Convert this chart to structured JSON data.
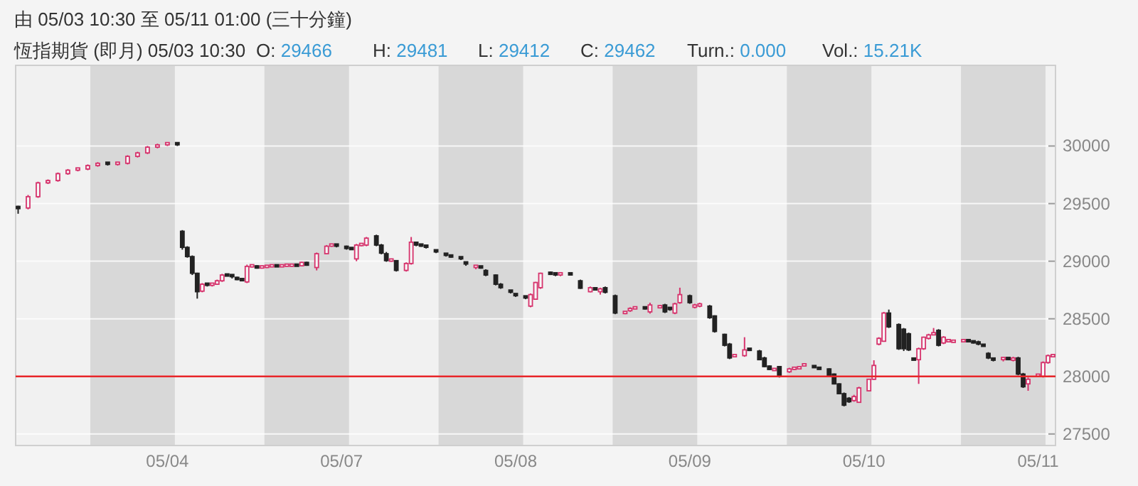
{
  "chart_data": {
    "type": "candlestick",
    "title": "由 05/03 10:30 至 05/11 01:00 (三十分鐘)",
    "annotations": [
      "恆指期貨 (即月) 05/03 10:30",
      "O: 29466",
      "H: 29481",
      "L: 29412",
      "C: 29462",
      "Turn.: 0.000",
      "Vol.: 15.21K"
    ],
    "categories": [
      null,
      null,
      null,
      null,
      null,
      null,
      null,
      null,
      null,
      null,
      null,
      null,
      null,
      null,
      null,
      null,
      null,
      null,
      null,
      null,
      null,
      null,
      null,
      null,
      null,
      null,
      null,
      null,
      null,
      null,
      "05/04",
      null,
      null,
      null,
      null,
      null,
      null,
      null,
      null,
      null,
      null,
      null,
      null,
      null,
      null,
      null,
      null,
      null,
      null,
      null,
      null,
      null,
      null,
      null,
      null,
      null,
      null,
      null,
      null,
      null,
      null,
      null,
      null,
      null,
      null,
      "05/07",
      null,
      null,
      null,
      null,
      null,
      null,
      null,
      null,
      null,
      null,
      null,
      null,
      null,
      null,
      null,
      null,
      null,
      null,
      null,
      null,
      null,
      null,
      null,
      null,
      null,
      null,
      null,
      null,
      null,
      null,
      null,
      null,
      null,
      null,
      "05/08",
      null,
      null,
      null,
      null,
      null,
      null,
      null,
      null,
      null,
      null,
      null,
      null,
      null,
      null,
      null,
      null,
      null,
      null,
      null,
      null,
      null,
      null,
      null,
      null,
      null,
      null,
      null,
      null,
      null,
      null,
      null,
      null,
      null,
      null,
      "05/09",
      null,
      null,
      null,
      null,
      null,
      null,
      null,
      null,
      null,
      null,
      null,
      null,
      null,
      null,
      null,
      null,
      null,
      null,
      null,
      null,
      null,
      null,
      null,
      null,
      null,
      null,
      null,
      null,
      null,
      null,
      null,
      null,
      null,
      null,
      "05/10",
      null,
      null,
      null,
      null,
      null,
      null,
      null,
      null,
      null,
      null,
      null,
      null,
      null,
      null,
      null,
      null,
      null,
      null,
      null,
      null,
      null,
      null,
      null,
      null,
      null,
      null,
      null,
      null,
      null,
      null,
      null,
      null,
      null,
      null,
      "05/11",
      null,
      null,
      null
    ],
    "ylim": [
      27400,
      30700
    ],
    "yticks": [
      27500,
      28000,
      28500,
      29000,
      29500,
      30000
    ],
    "grid": "y",
    "ref_lines": [
      {
        "axis": "y",
        "value": 28000,
        "color": "#e8262a"
      }
    ],
    "ohlc": [
      [
        29466,
        29481,
        29412,
        29462
      ],
      null,
      [
        29462,
        29575,
        29450,
        29560
      ],
      null,
      [
        29560,
        29690,
        29550,
        29680
      ],
      null,
      [
        29680,
        29710,
        29670,
        29700
      ],
      null,
      [
        29700,
        29770,
        29690,
        29760
      ],
      null,
      [
        29760,
        29800,
        29750,
        29790
      ],
      null,
      [
        29790,
        29810,
        29780,
        29800
      ],
      null,
      [
        29800,
        29840,
        29790,
        29830
      ],
      null,
      [
        29830,
        29860,
        29820,
        29850
      ],
      null,
      [
        29850,
        29860,
        29830,
        29840
      ],
      null,
      [
        29840,
        29860,
        29830,
        29850
      ],
      null,
      [
        29850,
        29920,
        29840,
        29910
      ],
      null,
      [
        29910,
        29950,
        29900,
        29940
      ],
      null,
      [
        29940,
        30000,
        29930,
        29990
      ],
      null,
      [
        29990,
        30020,
        29980,
        30010
      ],
      null,
      [
        30010,
        30030,
        30000,
        30020
      ],
      null,
      [
        30020,
        30030,
        30000,
        30010
      ],
      [
        29260,
        29270,
        29100,
        29120
      ],
      [
        29120,
        29130,
        29030,
        29040
      ],
      [
        29040,
        29050,
        28880,
        28895
      ],
      [
        28895,
        28900,
        28675,
        28735
      ],
      [
        28740,
        28810,
        28730,
        28800
      ],
      [
        28800,
        28810,
        28780,
        28790
      ],
      [
        28790,
        28810,
        28780,
        28800
      ],
      [
        28800,
        28840,
        28795,
        28830
      ],
      [
        28830,
        28890,
        28820,
        28880
      ],
      [
        28880,
        28890,
        28870,
        28875
      ],
      [
        28875,
        28880,
        28850,
        28860
      ],
      [
        28860,
        28865,
        28835,
        28840
      ],
      [
        28840,
        28850,
        28830,
        28835
      ],
      [
        28820,
        28970,
        28810,
        28955
      ],
      [
        28955,
        28970,
        28945,
        28960
      ],
      [
        28960,
        28965,
        28935,
        28940
      ],
      [
        28940,
        28955,
        28935,
        28950
      ],
      [
        28950,
        28960,
        28940,
        28955
      ],
      [
        28955,
        28965,
        28950,
        28960
      ],
      [
        28960,
        28965,
        28950,
        28955
      ],
      [
        28955,
        28965,
        28950,
        28960
      ],
      [
        28960,
        28970,
        28955,
        28965
      ],
      [
        28960,
        28970,
        28955,
        28965
      ],
      [
        28965,
        28970,
        28955,
        28960
      ],
      [
        28960,
        28995,
        28955,
        28990
      ],
      [
        28990,
        28995,
        28960,
        28965
      ],
      null,
      [
        28945,
        29075,
        28920,
        29065
      ],
      null,
      [
        29065,
        29140,
        29060,
        29130
      ],
      [
        29130,
        29150,
        29125,
        29140
      ],
      [
        29140,
        29145,
        29120,
        29130
      ],
      null,
      [
        29130,
        29135,
        29100,
        29110
      ],
      [
        29110,
        29120,
        29100,
        29105
      ],
      [
        29020,
        29150,
        29000,
        29140
      ],
      [
        29140,
        29150,
        29130,
        29145
      ],
      [
        29140,
        29210,
        29130,
        29200
      ],
      null,
      [
        29220,
        29230,
        29130,
        29140
      ],
      [
        29140,
        29150,
        29060,
        29070
      ],
      [
        29065,
        29080,
        28995,
        29005
      ],
      [
        29005,
        29020,
        28995,
        29010
      ],
      [
        29005,
        29010,
        28910,
        28920
      ],
      null,
      [
        28920,
        28990,
        28910,
        28980
      ],
      [
        28980,
        29210,
        28970,
        29165
      ],
      [
        29165,
        29170,
        29130,
        29140
      ],
      [
        29140,
        29145,
        29125,
        29130
      ],
      [
        29130,
        29135,
        29110,
        29120
      ],
      null,
      [
        29090,
        29100,
        29070,
        29080
      ],
      null,
      [
        29060,
        29065,
        29040,
        29050
      ],
      [
        29045,
        29050,
        29030,
        29040
      ],
      null,
      [
        29030,
        29040,
        29010,
        29020
      ],
      [
        28985,
        28990,
        28960,
        28970
      ],
      null,
      [
        28940,
        28960,
        28930,
        28955
      ],
      [
        28950,
        28955,
        28935,
        28945
      ],
      [
        28920,
        28930,
        28870,
        28880
      ],
      null,
      [
        28880,
        28885,
        28790,
        28800
      ],
      [
        28800,
        28810,
        28760,
        28770
      ],
      null,
      [
        28740,
        28750,
        28720,
        28730
      ],
      [
        28710,
        28715,
        28690,
        28700
      ],
      null,
      [
        28690,
        28700,
        28670,
        28680
      ],
      [
        28610,
        28720,
        28600,
        28710
      ],
      [
        28670,
        28820,
        28665,
        28815
      ],
      [
        28770,
        28900,
        28760,
        28895
      ],
      null,
      [
        28895,
        28910,
        28880,
        28890
      ],
      [
        28890,
        28900,
        28870,
        28885
      ],
      [
        28885,
        28895,
        28870,
        28890
      ],
      null,
      [
        28890,
        28900,
        28880,
        28885
      ],
      null,
      [
        28830,
        28840,
        28760,
        28765
      ],
      null,
      [
        28735,
        28780,
        28730,
        28770
      ],
      [
        28770,
        28775,
        28745,
        28750
      ],
      [
        28735,
        28770,
        28710,
        28760
      ],
      [
        28770,
        28780,
        28720,
        28730
      ],
      null,
      [
        28700,
        28710,
        28540,
        28550
      ],
      null,
      [
        28550,
        28560,
        28540,
        28555
      ],
      [
        28570,
        28600,
        28560,
        28590
      ],
      [
        28590,
        28600,
        28585,
        28595
      ],
      null,
      [
        28595,
        28600,
        28580,
        28590
      ],
      [
        28560,
        28640,
        28545,
        28620
      ],
      null,
      [
        28600,
        28620,
        28590,
        28605
      ],
      [
        28620,
        28630,
        28550,
        28560
      ],
      [
        28590,
        28600,
        28570,
        28580
      ],
      [
        28550,
        28640,
        28540,
        28630
      ],
      [
        28640,
        28770,
        28630,
        28710
      ],
      null,
      [
        28700,
        28710,
        28630,
        28640
      ],
      [
        28600,
        28630,
        28590,
        28620
      ],
      [
        28610,
        28640,
        28600,
        28630
      ],
      null,
      [
        28610,
        28620,
        28500,
        28510
      ],
      [
        28525,
        28530,
        28380,
        28390
      ],
      null,
      [
        28365,
        28370,
        28260,
        28270
      ],
      [
        28280,
        28290,
        28150,
        28160
      ],
      [
        28175,
        28190,
        28170,
        28180
      ],
      null,
      [
        28180,
        28340,
        28170,
        28230
      ],
      [
        28235,
        28240,
        28220,
        28230
      ],
      null,
      [
        28220,
        28230,
        28140,
        28145
      ],
      [
        28160,
        28170,
        28080,
        28085
      ],
      [
        28090,
        28095,
        28055,
        28060
      ],
      [
        28055,
        28070,
        28050,
        28060
      ],
      [
        28085,
        28090,
        27990,
        28000
      ],
      null,
      [
        28040,
        28075,
        28030,
        28065
      ],
      [
        28065,
        28075,
        28055,
        28070
      ],
      [
        28070,
        28080,
        28060,
        28075
      ],
      [
        28090,
        28105,
        28085,
        28100
      ],
      null,
      [
        28085,
        28095,
        28075,
        28080
      ],
      [
        28070,
        28080,
        28060,
        28065
      ],
      null,
      [
        28065,
        28070,
        27995,
        28000
      ],
      [
        28020,
        28025,
        27930,
        27935
      ],
      [
        27935,
        27940,
        27845,
        27850
      ],
      [
        27850,
        27860,
        27740,
        27750
      ],
      [
        27810,
        27820,
        27770,
        27780
      ],
      [
        27790,
        27840,
        27780,
        27825
      ],
      [
        27775,
        27910,
        27770,
        27900
      ],
      null,
      [
        27875,
        27980,
        27870,
        27975
      ],
      [
        27975,
        28140,
        27970,
        28095
      ],
      [
        28280,
        28340,
        28270,
        28330
      ],
      [
        28305,
        28560,
        28300,
        28550
      ],
      [
        28550,
        28580,
        28420,
        28430
      ],
      null,
      [
        28450,
        28460,
        28230,
        28240
      ],
      [
        28410,
        28420,
        28220,
        28240
      ],
      [
        28370,
        28380,
        28220,
        28230
      ],
      [
        28150,
        28160,
        28140,
        28145
      ],
      [
        28145,
        28250,
        27935,
        28240
      ],
      [
        28240,
        28345,
        28230,
        28340
      ],
      [
        28330,
        28370,
        28320,
        28360
      ],
      [
        28365,
        28420,
        28360,
        28370
      ],
      [
        28400,
        28410,
        28260,
        28270
      ],
      [
        28290,
        28350,
        28280,
        28340
      ],
      [
        28305,
        28320,
        28300,
        28310
      ],
      [
        28300,
        28315,
        28295,
        28305
      ],
      null,
      [
        28305,
        28320,
        28300,
        28310
      ],
      [
        28310,
        28320,
        28300,
        28305
      ],
      [
        28300,
        28310,
        28285,
        28290
      ],
      [
        28300,
        28310,
        28270,
        28280
      ],
      [
        28270,
        28280,
        28260,
        28265
      ],
      [
        28200,
        28210,
        28150,
        28160
      ],
      [
        28150,
        28160,
        28130,
        28140
      ],
      null,
      [
        28140,
        28160,
        28130,
        28155
      ],
      [
        28155,
        28160,
        28145,
        28150
      ],
      [
        28140,
        28170,
        28130,
        28160
      ],
      [
        28160,
        28170,
        28010,
        28020
      ],
      [
        28020,
        28030,
        27900,
        27910
      ],
      [
        27935,
        27990,
        27875,
        27975
      ],
      null,
      [
        28005,
        28015,
        27995,
        28010
      ],
      [
        28000,
        28130,
        27990,
        28120
      ],
      [
        28120,
        28190,
        28110,
        28180
      ],
      [
        28175,
        28185,
        28170,
        28180
      ]
    ],
    "colors": [
      "#222222",
      null,
      "#d6336c",
      null,
      "#d6336c",
      null,
      "#d6336c",
      null,
      "#d6336c",
      null,
      "#d6336c",
      null,
      "#d6336c",
      null,
      "#d6336c",
      null,
      "#d6336c",
      null,
      "#222222",
      null,
      "#d6336c",
      null,
      "#d6336c",
      null,
      "#d6336c",
      null,
      "#d6336c",
      null,
      "#d6336c",
      null,
      "#d6336c",
      null,
      "#222222",
      "#222222",
      "#222222",
      "#222222",
      "#222222",
      "#d6336c",
      "#222222",
      "#d6336c",
      "#d6336c",
      "#d6336c",
      "#222222",
      "#222222",
      "#222222",
      "#222222",
      "#d6336c",
      "#d6336c",
      "#222222",
      "#d6336c",
      "#d6336c",
      "#d6336c",
      "#222222",
      "#d6336c",
      "#d6336c",
      "#d6336c",
      "#222222",
      "#d6336c",
      "#222222",
      null,
      "#d6336c",
      null,
      "#d6336c",
      "#d6336c",
      "#222222",
      null,
      "#222222",
      "#222222",
      "#d6336c",
      "#d6336c",
      "#d6336c",
      null,
      "#222222",
      "#222222",
      "#222222",
      "#d6336c",
      "#222222",
      null,
      "#d6336c",
      "#d6336c",
      "#222222",
      "#222222",
      "#222222",
      null,
      "#222222",
      null,
      "#222222",
      "#222222",
      null,
      "#222222",
      "#222222",
      null,
      "#d6336c",
      "#222222",
      "#222222",
      null,
      "#222222",
      "#222222",
      null,
      "#222222",
      "#222222",
      null,
      "#222222",
      "#d6336c",
      "#d6336c",
      "#d6336c",
      null,
      "#222222",
      "#222222",
      "#d6336c",
      null,
      "#222222",
      null,
      "#222222",
      null,
      "#d6336c",
      "#222222",
      "#d6336c",
      "#222222",
      null,
      "#222222",
      null,
      "#d6336c",
      "#d6336c",
      "#d6336c",
      null,
      "#222222",
      "#d6336c",
      null,
      "#d6336c",
      "#222222",
      "#222222",
      "#d6336c",
      "#d6336c",
      null,
      "#222222",
      "#d6336c",
      "#d6336c",
      null,
      "#222222",
      "#222222",
      null,
      "#222222",
      "#222222",
      "#d6336c",
      null,
      "#d6336c",
      "#222222",
      null,
      "#222222",
      "#222222",
      "#222222",
      "#d6336c",
      "#222222",
      null,
      "#d6336c",
      "#d6336c",
      "#d6336c",
      "#d6336c",
      null,
      "#222222",
      "#222222",
      null,
      "#222222",
      "#222222",
      "#222222",
      "#222222",
      "#222222",
      "#d6336c",
      "#d6336c",
      null,
      "#d6336c",
      "#d6336c",
      "#d6336c",
      "#d6336c",
      "#222222",
      null,
      "#222222",
      "#222222",
      "#222222",
      "#222222",
      "#d6336c",
      "#d6336c",
      "#d6336c",
      "#d6336c",
      "#222222",
      "#d6336c",
      "#d6336c",
      "#d6336c",
      null,
      "#d6336c",
      "#222222",
      "#222222",
      "#222222",
      "#222222",
      "#222222",
      "#222222",
      null,
      "#d6336c",
      "#222222",
      "#d6336c",
      "#222222",
      "#222222",
      "#d6336c",
      null,
      "#d6336c",
      "#d6336c",
      "#d6336c",
      "#d6336c"
    ]
  }
}
